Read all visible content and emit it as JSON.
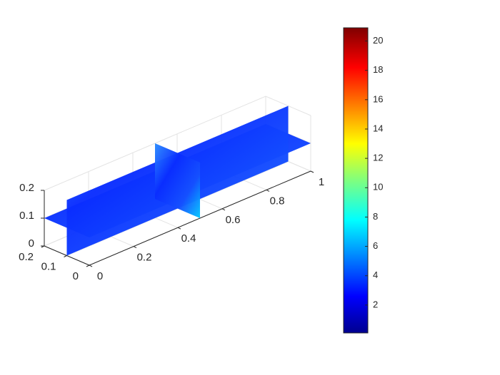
{
  "chart_data": {
    "type": "slice",
    "xticks": [
      0,
      0.2,
      0.4,
      0.6,
      0.8,
      1
    ],
    "xlim": [
      0,
      1
    ],
    "yticks": [
      0,
      0.1,
      0.2
    ],
    "ylim": [
      0,
      0.2
    ],
    "zticks": [
      0,
      0.1,
      0.2
    ],
    "zlim": [
      0,
      0.2
    ],
    "slices": {
      "x": [
        0.5
      ],
      "y": [
        0.1
      ],
      "z": [
        0.1
      ]
    },
    "grid": true,
    "colormap": "jet",
    "clim": [
      0.1,
      20.9
    ],
    "colorbar_ticks": [
      2,
      4,
      6,
      8,
      10,
      12,
      14,
      16,
      18,
      20
    ]
  }
}
